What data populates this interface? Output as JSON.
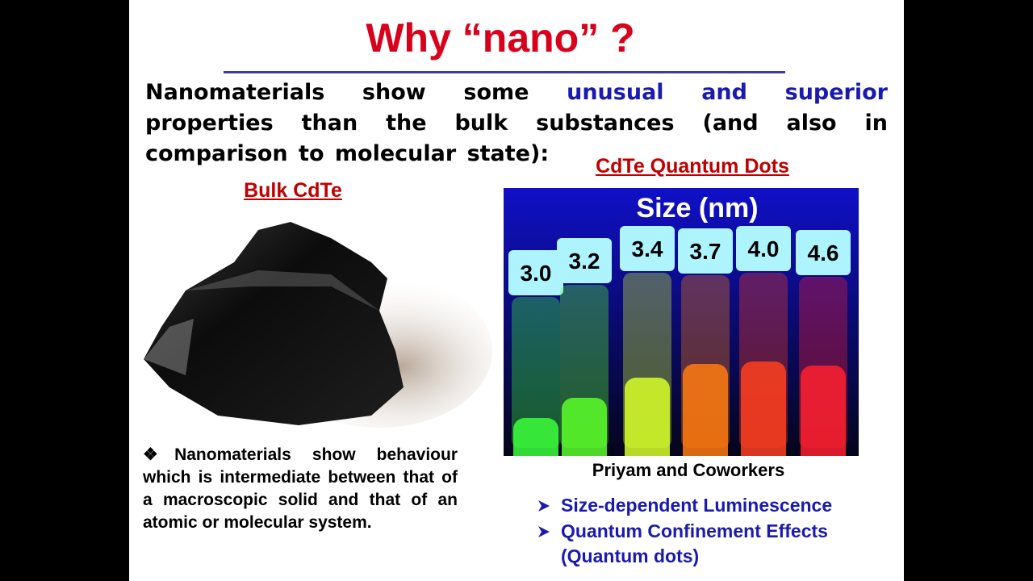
{
  "slide": {
    "title": "Why “nano” ?",
    "intro": {
      "before": "Nanomaterials show some",
      "highlight": "unusual and superior",
      "after": "properties than the bulk substances  (and also in comparison to molecular state):"
    },
    "left": {
      "caption": "Bulk CdTe",
      "note": "❖Nanomaterials show behaviour which is intermediate between that of a macroscopic solid and that of an atomic or molecular system."
    },
    "right": {
      "caption": "CdTe Quantum Dots",
      "image": {
        "heading": "Size (nm)",
        "sizes": [
          "3.0",
          "3.2",
          "3.4",
          "3.7",
          "4.0",
          "4.6"
        ]
      },
      "credit": "Priyam and Coworkers",
      "points": [
        "Size-dependent Luminescence",
        "Quantum Confinement Effects"
      ],
      "sub_point": "(Quantum dots)"
    }
  }
}
